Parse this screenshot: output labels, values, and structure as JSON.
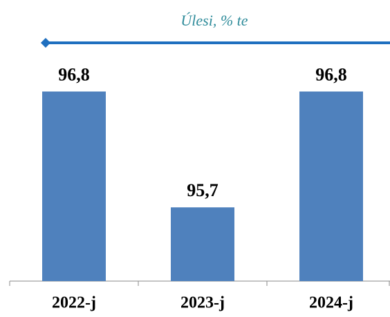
{
  "chart_data": {
    "type": "bar",
    "title": "Úlesi, % te",
    "categories": [
      "2022-j",
      "2023-j",
      "2024-j"
    ],
    "values": [
      96.8,
      95.7,
      96.8
    ],
    "value_labels": [
      "96,8",
      "95,7",
      "96,8"
    ],
    "color": "#4f81bd",
    "ylim": [
      95,
      97
    ]
  }
}
